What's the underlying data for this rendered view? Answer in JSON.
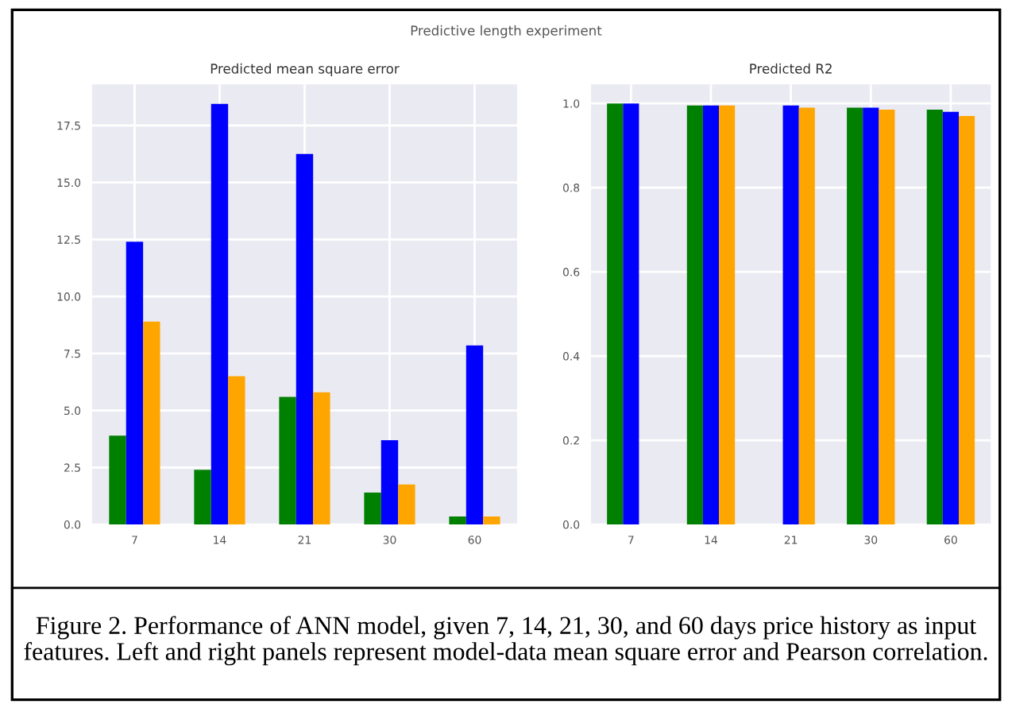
{
  "chart_data": [
    {
      "type": "bar",
      "title": "Predicted mean square error",
      "categories": [
        "7",
        "14",
        "21",
        "30",
        "60"
      ],
      "series": [
        {
          "color": "#008000",
          "values": [
            3.9,
            2.4,
            5.6,
            1.4,
            0.35
          ]
        },
        {
          "color": "#0000ff",
          "values": [
            12.4,
            18.45,
            16.25,
            3.7,
            7.85
          ]
        },
        {
          "color": "#ffa500",
          "values": [
            8.9,
            6.5,
            5.8,
            1.75,
            0.35
          ]
        }
      ],
      "ylim": [
        0,
        19.3
      ],
      "yticks": [
        {
          "value": 0,
          "label": "0.0"
        },
        2.5,
        {
          "value": 5,
          "label": "5.0"
        },
        7.5,
        {
          "value": 10,
          "label": "10.0"
        },
        12.5,
        {
          "value": 15,
          "label": "15.0"
        },
        17.5
      ],
      "grid": true,
      "annotations": [
        "Predictive length experiment",
        "Figure 2. Performance of ANN model, given 7, 14, 21, 30, and 60 days price history as input features. Left and right panels represent model-data mean square error and Pearson correlation."
      ]
    },
    {
      "type": "bar",
      "title": "Predicted R2",
      "categories": [
        "7",
        "14",
        "21",
        "30",
        "60"
      ],
      "series": [
        {
          "color": "#008000",
          "values": [
            1.0,
            0.995,
            null,
            0.99,
            0.985
          ]
        },
        {
          "color": "#0000ff",
          "values": [
            1.0,
            0.995,
            0.995,
            0.99,
            0.98
          ]
        },
        {
          "color": "#ffa500",
          "values": [
            null,
            0.995,
            0.99,
            0.985,
            0.97
          ]
        }
      ],
      "ylim": [
        0,
        1.045
      ],
      "yticks": [
        {
          "value": 0,
          "label": "0.0"
        },
        0.2,
        0.4,
        0.6,
        0.8,
        {
          "value": 1,
          "label": "1.0"
        }
      ],
      "grid": true
    }
  ]
}
